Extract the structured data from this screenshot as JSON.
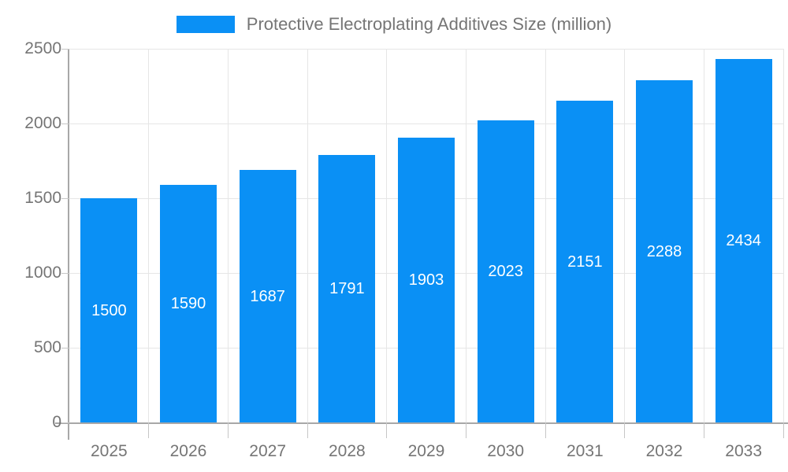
{
  "chart_data": {
    "type": "bar",
    "title": "Protective Electroplating Additives Size (million)",
    "legend": {
      "label": "Protective Electroplating Additives Size (million)",
      "position": "top"
    },
    "categories": [
      "2025",
      "2026",
      "2027",
      "2028",
      "2029",
      "2030",
      "2031",
      "2032",
      "2033"
    ],
    "values": [
      1500,
      1590,
      1687,
      1791,
      1903,
      2023,
      2151,
      2288,
      2434
    ],
    "xlabel": "",
    "ylabel": "",
    "ylim": [
      0,
      2500
    ],
    "yticks": [
      0,
      500,
      1000,
      1500,
      2000,
      2500
    ],
    "grid": true,
    "value_labels_inside_bars": true,
    "colors": {
      "bar": "#0a90f5",
      "value_label": "#ffffff",
      "axis_text": "#757575",
      "gridline": "#e6e6e6",
      "axis_line": "#a8a8a8",
      "tick": "#c6c6c6",
      "background": "#ffffff"
    }
  }
}
